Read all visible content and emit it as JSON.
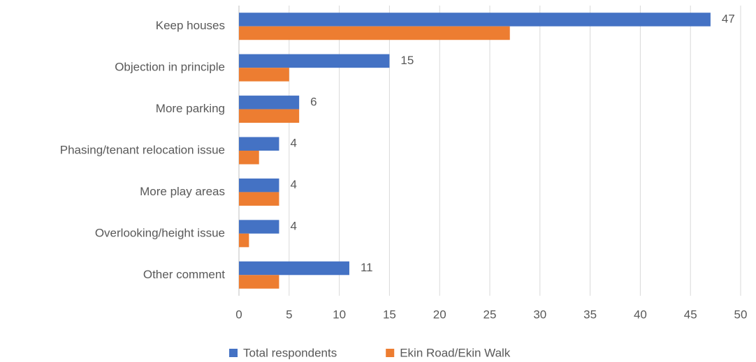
{
  "chart_data": {
    "type": "bar",
    "orientation": "horizontal",
    "categories": [
      "Keep houses",
      "Objection in principle",
      "More parking",
      "Phasing/tenant relocation issue",
      "More play areas",
      "Overlooking/height issue",
      "Other comment"
    ],
    "series": [
      {
        "name": "Total respondents",
        "color": "#4472c4",
        "values": [
          47,
          15,
          6,
          4,
          4,
          4,
          11
        ],
        "data_labels": true
      },
      {
        "name": "Ekin Road/Ekin Walk",
        "color": "#ed7d31",
        "values": [
          27,
          5,
          6,
          2,
          4,
          1,
          4
        ],
        "data_labels": false
      }
    ],
    "xlim": [
      0,
      50
    ],
    "xticks": [
      0,
      5,
      10,
      15,
      20,
      25,
      30,
      35,
      40,
      45,
      50
    ],
    "grid": true,
    "legend": "bottom"
  }
}
